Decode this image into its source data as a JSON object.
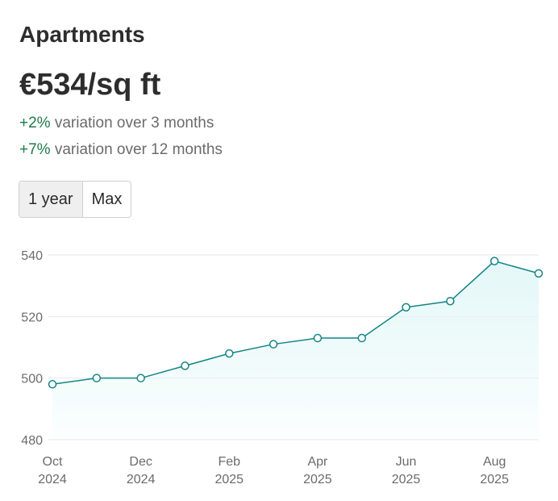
{
  "header": {
    "title": "Apartments",
    "price": "€534/sq ft"
  },
  "variations": [
    {
      "pct": "+2%",
      "text": " variation over 3 months"
    },
    {
      "pct": "+7%",
      "text": " variation over 12 months"
    }
  ],
  "range": {
    "options": [
      "1 year",
      "Max"
    ],
    "selected": "1 year"
  },
  "colors": {
    "line": "#138585",
    "fill": "#e4f7f8",
    "positive": "#1f7a4a",
    "grid": "#e6e6e6"
  },
  "chart_data": {
    "type": "area",
    "title": "",
    "xlabel": "",
    "ylabel": "",
    "ylim": [
      480,
      540
    ],
    "yticks": [
      480,
      500,
      520,
      540
    ],
    "grid": true,
    "x": [
      "2024-10",
      "2024-11",
      "2024-12",
      "2025-01",
      "2025-02",
      "2025-03",
      "2025-04",
      "2025-05",
      "2025-06",
      "2025-07",
      "2025-08",
      "2025-09"
    ],
    "series": [
      {
        "values": [
          498,
          500,
          500,
          504,
          508,
          511,
          513,
          513,
          523,
          525,
          538,
          534
        ]
      }
    ],
    "xtick_labels": [
      {
        "index": 0,
        "month": "Oct",
        "year": "2024"
      },
      {
        "index": 2,
        "month": "Dec",
        "year": "2024"
      },
      {
        "index": 4,
        "month": "Feb",
        "year": "2025"
      },
      {
        "index": 6,
        "month": "Apr",
        "year": "2025"
      },
      {
        "index": 8,
        "month": "Jun",
        "year": "2025"
      },
      {
        "index": 10,
        "month": "Aug",
        "year": "2025"
      }
    ]
  }
}
